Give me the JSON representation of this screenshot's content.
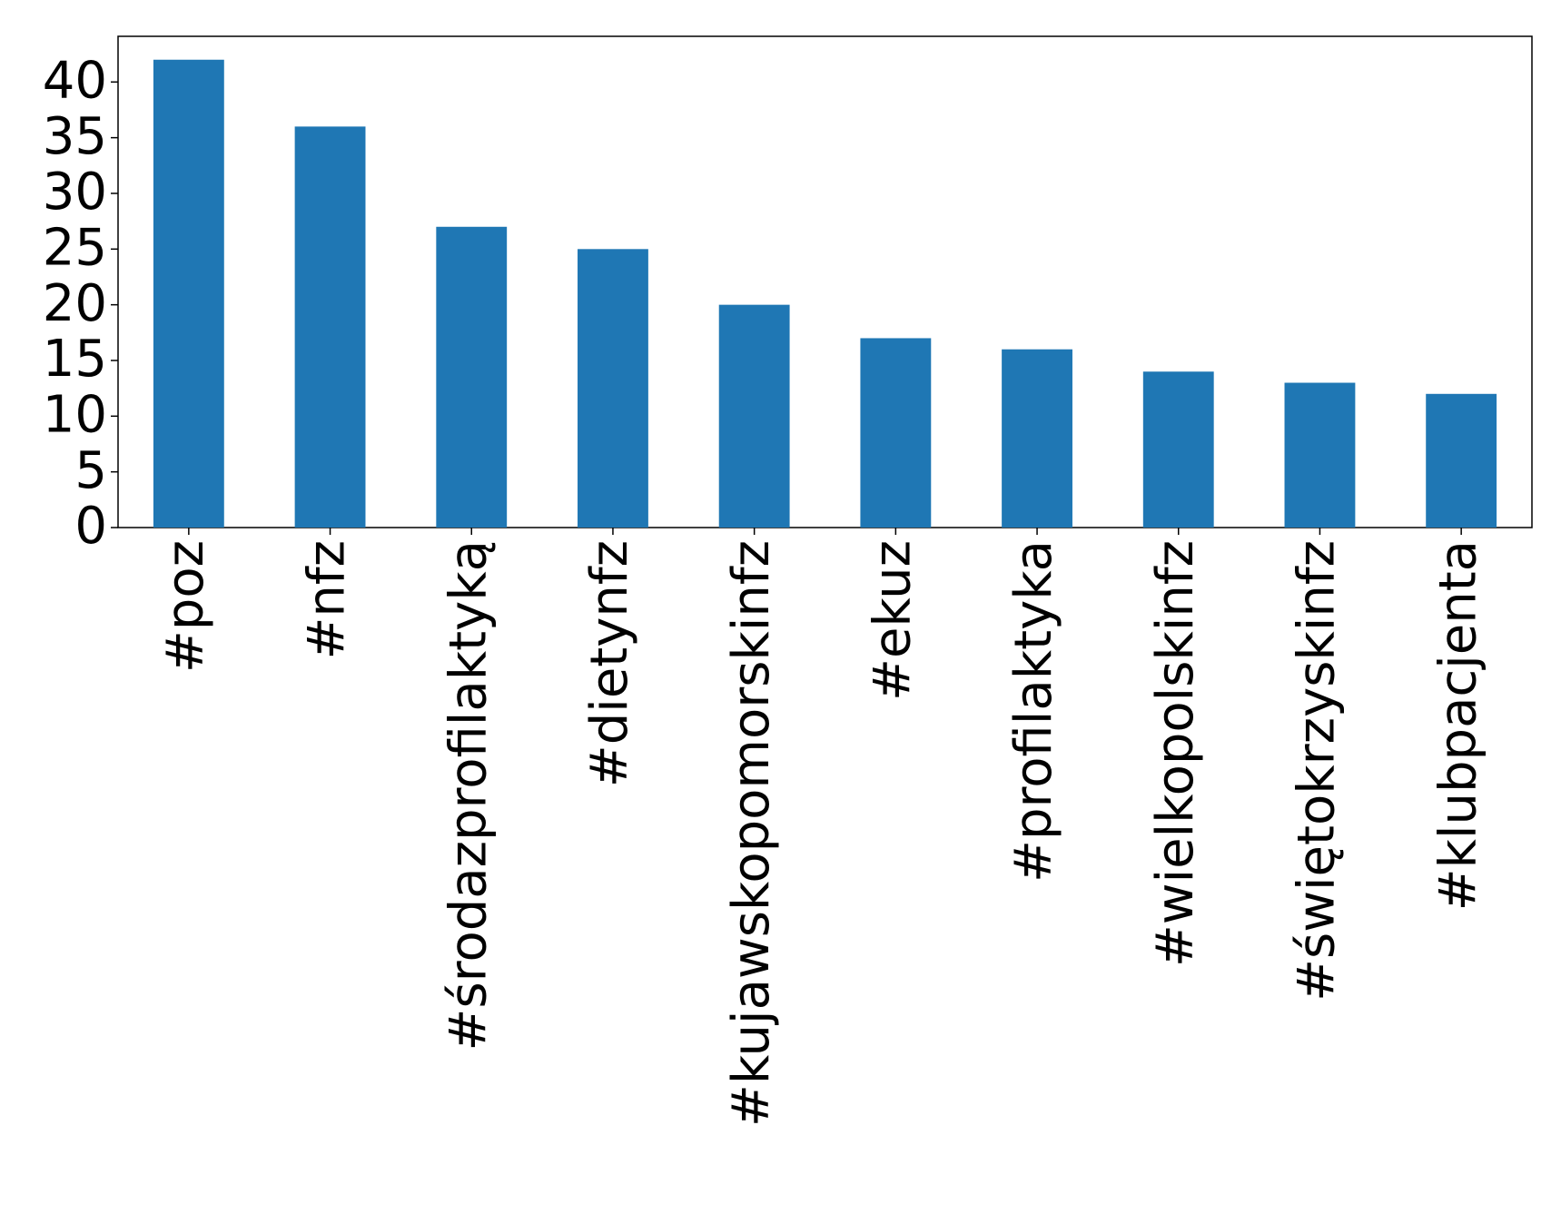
{
  "chart_data": {
    "type": "bar",
    "categories": [
      "#poz",
      "#nfz",
      "#środazprofilaktyką",
      "#dietynfz",
      "#kujawskopomorskinfz",
      "#ekuz",
      "#profilaktyka",
      "#wielkopolskinfz",
      "#świętokrzyskinfz",
      "#klubpacjenta"
    ],
    "values": [
      42,
      36,
      27,
      25,
      20,
      17,
      16,
      14,
      13,
      12
    ],
    "color": "#1f77b4",
    "ylim": [
      0,
      44.1
    ],
    "yticks": [
      0,
      5,
      10,
      15,
      20,
      25,
      30,
      35,
      40
    ],
    "grid": false
  }
}
